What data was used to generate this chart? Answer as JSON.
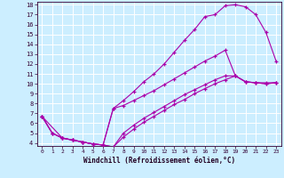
{
  "xlabel": "Windchill (Refroidissement éolien,°C)",
  "xlim": [
    -0.5,
    23.5
  ],
  "ylim": [
    3.7,
    18.3
  ],
  "xticks": [
    0,
    1,
    2,
    3,
    4,
    5,
    6,
    7,
    8,
    9,
    10,
    11,
    12,
    13,
    14,
    15,
    16,
    17,
    18,
    19,
    20,
    21,
    22,
    23
  ],
  "yticks": [
    4,
    5,
    6,
    7,
    8,
    9,
    10,
    11,
    12,
    13,
    14,
    15,
    16,
    17,
    18
  ],
  "bg_color": "#cceeff",
  "line_color": "#aa00aa",
  "grid_color": "#ffffff",
  "line1_x": [
    0,
    1,
    2,
    3,
    4,
    5,
    6,
    7,
    8,
    9,
    10,
    11,
    12,
    13,
    14,
    15,
    16,
    17,
    18,
    19,
    20,
    21,
    22,
    23
  ],
  "line1_y": [
    6.7,
    5.0,
    4.5,
    4.3,
    4.1,
    3.9,
    3.8,
    7.5,
    8.3,
    9.2,
    10.2,
    11.0,
    12.0,
    13.2,
    14.4,
    15.5,
    16.8,
    17.0,
    17.9,
    18.0,
    17.8,
    17.0,
    15.2,
    12.3
  ],
  "line2_x": [
    0,
    1,
    2,
    3,
    4,
    5,
    6,
    7,
    8,
    9,
    10,
    11,
    12,
    13,
    14,
    15,
    16,
    17,
    18,
    19,
    20,
    21,
    22,
    23
  ],
  "line2_y": [
    6.7,
    5.0,
    4.5,
    4.3,
    4.1,
    3.9,
    3.8,
    7.5,
    7.8,
    8.3,
    8.8,
    9.3,
    9.9,
    10.5,
    11.1,
    11.7,
    12.3,
    12.8,
    13.4,
    10.8,
    10.2,
    10.1,
    10.1,
    10.1
  ],
  "line3_x": [
    0,
    2,
    3,
    4,
    5,
    6,
    7,
    8,
    9,
    10,
    11,
    12,
    13,
    14,
    15,
    16,
    17,
    18,
    19,
    20,
    21,
    22,
    23
  ],
  "line3_y": [
    6.7,
    4.5,
    4.3,
    4.1,
    3.9,
    3.8,
    3.6,
    5.0,
    5.8,
    6.5,
    7.1,
    7.7,
    8.3,
    8.9,
    9.4,
    9.9,
    10.4,
    10.8,
    10.8,
    10.2,
    10.1,
    10.0,
    10.1
  ],
  "line4_x": [
    0,
    1,
    2,
    3,
    4,
    5,
    6,
    7,
    8,
    9,
    10,
    11,
    12,
    13,
    14,
    15,
    16,
    17,
    18,
    19,
    20,
    21,
    22,
    23
  ],
  "line4_y": [
    6.7,
    5.0,
    4.5,
    4.3,
    4.1,
    3.9,
    3.8,
    3.6,
    4.6,
    5.4,
    6.1,
    6.7,
    7.3,
    7.9,
    8.4,
    9.0,
    9.5,
    10.0,
    10.4,
    10.8,
    10.2,
    10.1,
    10.0,
    10.1
  ]
}
